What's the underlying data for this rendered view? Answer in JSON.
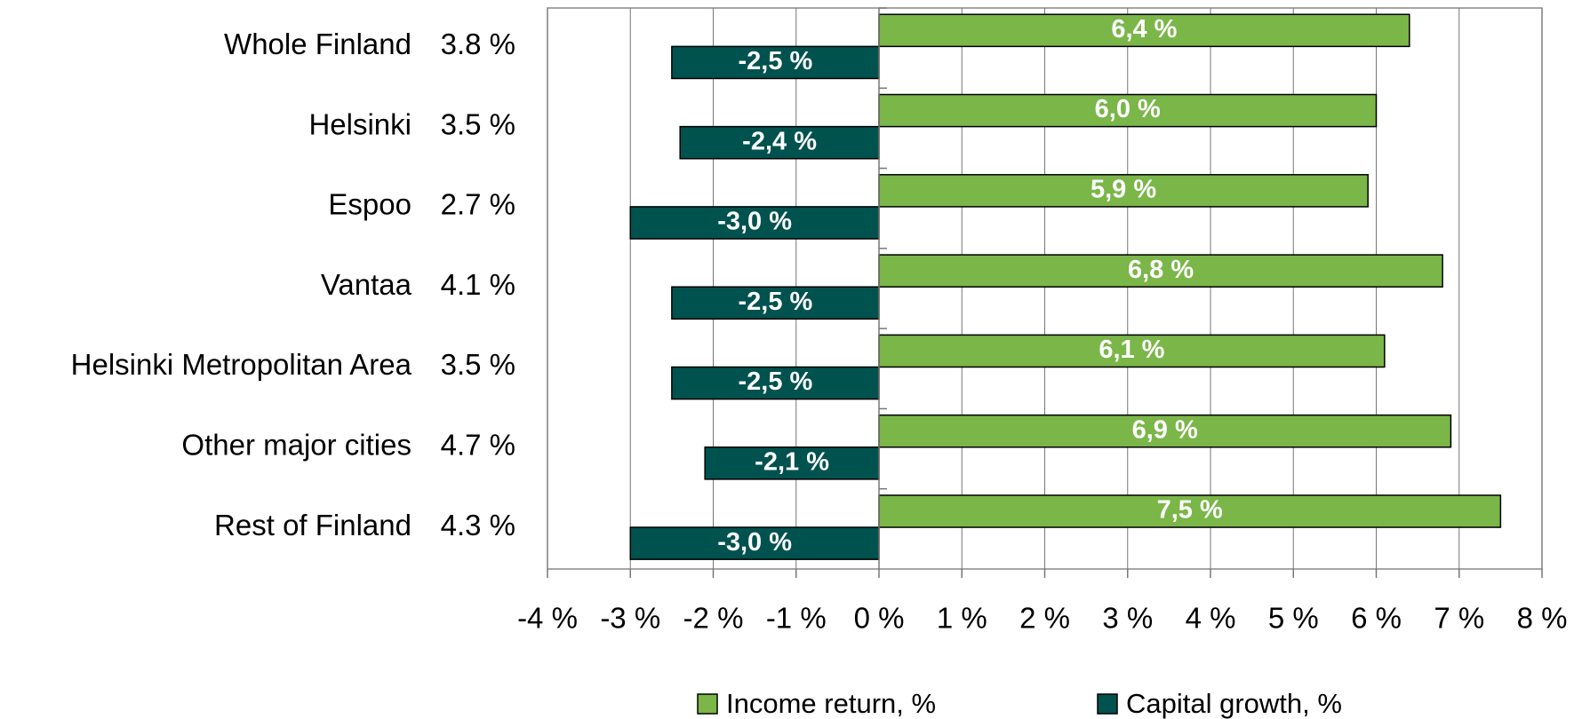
{
  "chart_data": {
    "type": "hbar",
    "categories": [
      "Whole Finland",
      "Helsinki",
      "Espoo",
      "Vantaa",
      "Helsinki Metropolitan Area",
      "Other major cities",
      "Rest of Finland"
    ],
    "totals": [
      3.8,
      3.5,
      2.7,
      4.1,
      3.5,
      4.7,
      4.3
    ],
    "total_labels": [
      "3.8 %",
      "3.5 %",
      "2.7 %",
      "4.1 %",
      "3.5 %",
      "4.7 %",
      "4.3 %"
    ],
    "series": [
      {
        "name": "Income return, %",
        "color": "#7ab648",
        "values": [
          6.4,
          6.0,
          5.9,
          6.8,
          6.1,
          6.9,
          7.5
        ],
        "value_labels": [
          "6,4 %",
          "6,0 %",
          "5,9 %",
          "6,8 %",
          "6,1 %",
          "6,9 %",
          "7,5 %"
        ]
      },
      {
        "name": "Capital growth, %",
        "color": "#00524f",
        "values": [
          -2.5,
          -2.4,
          -3.0,
          -2.5,
          -2.5,
          -2.1,
          -3.0
        ],
        "value_labels": [
          "-2,5 %",
          "-2,4 %",
          "-3,0 %",
          "-2,5 %",
          "-2,5 %",
          "-2,1 %",
          "-3,0 %"
        ]
      }
    ],
    "xlim": [
      -4,
      8
    ],
    "xticks": [
      {
        "value": -4,
        "label": "-4 %"
      },
      {
        "value": -3,
        "label": "-3 %"
      },
      {
        "value": -2,
        "label": "-2 %"
      },
      {
        "value": -1,
        "label": "-1 %"
      },
      {
        "value": 0,
        "label": "0 %"
      },
      {
        "value": 1,
        "label": "1 %"
      },
      {
        "value": 2,
        "label": "2 %"
      },
      {
        "value": 3,
        "label": "3 %"
      },
      {
        "value": 4,
        "label": "4 %"
      },
      {
        "value": 5,
        "label": "5 %"
      },
      {
        "value": 6,
        "label": "6 %"
      },
      {
        "value": 7,
        "label": "7 %"
      },
      {
        "value": 8,
        "label": "8 %"
      }
    ],
    "grid": true,
    "legend": "bottom"
  }
}
